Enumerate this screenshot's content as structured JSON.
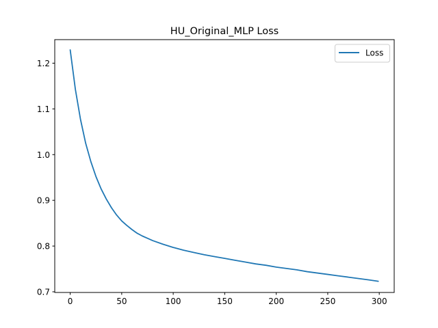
{
  "chart_data": {
    "type": "line",
    "title": "HU_Original_MLP Loss",
    "xlabel": "",
    "ylabel": "",
    "xlim": [
      -15,
      314.5
    ],
    "ylim": [
      0.6985,
      1.2515
    ],
    "xticks": [
      0,
      50,
      100,
      150,
      200,
      250,
      300
    ],
    "yticks": [
      0.7,
      0.8,
      0.9,
      1.0,
      1.1,
      1.2
    ],
    "ytick_labels": [
      "0.7",
      "0.8",
      "0.9",
      "1.0",
      "1.1",
      "1.2"
    ],
    "grid": false,
    "legend": {
      "position": "top-right",
      "entries": [
        "Loss"
      ]
    },
    "series": [
      {
        "name": "Loss",
        "color": "#1f77b4",
        "x": [
          0,
          5,
          10,
          15,
          20,
          25,
          30,
          35,
          40,
          45,
          50,
          55,
          60,
          65,
          70,
          75,
          80,
          90,
          100,
          110,
          120,
          130,
          140,
          150,
          160,
          170,
          180,
          190,
          200,
          210,
          220,
          230,
          240,
          250,
          260,
          270,
          280,
          290,
          299
        ],
        "y": [
          1.229,
          1.143,
          1.077,
          1.025,
          0.985,
          0.952,
          0.925,
          0.903,
          0.884,
          0.868,
          0.855,
          0.845,
          0.836,
          0.828,
          0.822,
          0.817,
          0.812,
          0.804,
          0.797,
          0.791,
          0.786,
          0.781,
          0.777,
          0.773,
          0.769,
          0.765,
          0.761,
          0.758,
          0.754,
          0.751,
          0.748,
          0.744,
          0.741,
          0.738,
          0.735,
          0.732,
          0.729,
          0.726,
          0.723
        ]
      }
    ]
  }
}
